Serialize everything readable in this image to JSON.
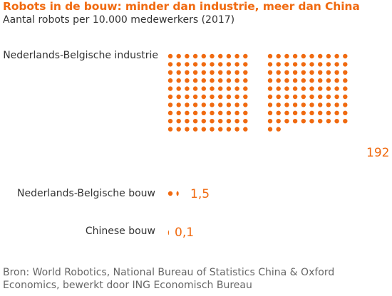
{
  "title": "Robots in de bouw: minder dan industrie, meer dan China",
  "subtitle": "Aantal robots per 10.000 medewerkers (2017)",
  "source": "Bron: World Robotics, National Bureau of Statistics China & Oxford Economics, bewerkt door ING Economisch Bureau",
  "chart_data": {
    "type": "bar",
    "unit_per_dot": 1,
    "categories": [
      "Nederlands-Belgische industrie",
      "Nederlands-Belgische bouw",
      "Chinese bouw"
    ],
    "values": [
      192,
      1.5,
      0.1
    ],
    "value_labels": [
      "192",
      "1,5",
      "0,1"
    ],
    "color": "#f06a10"
  }
}
